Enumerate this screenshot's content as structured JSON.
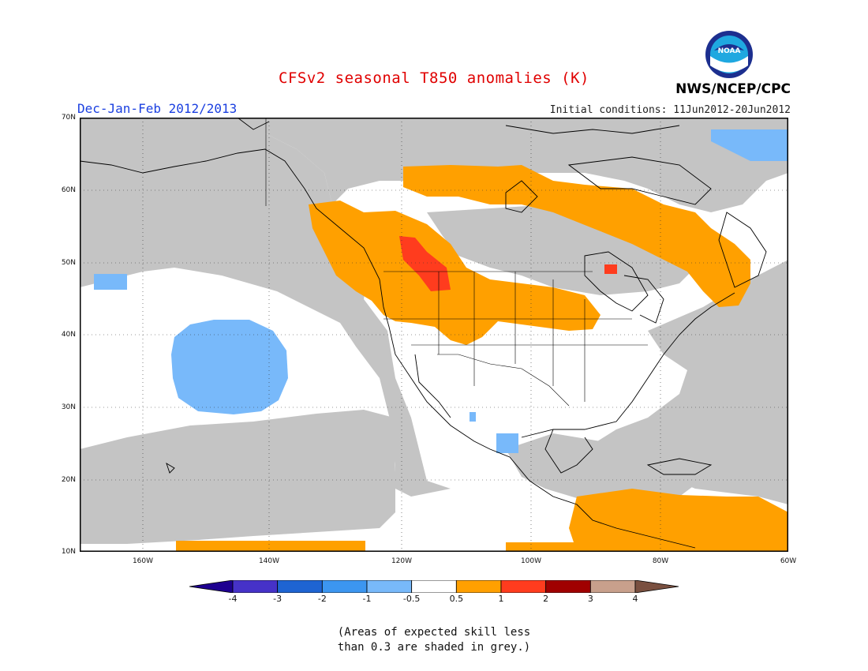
{
  "title": "CFSv2 seasonal T850 anomalies (K)",
  "season": "Dec-Jan-Feb 2012/2013",
  "initial_conditions": "Initial conditions: 11Jun2012-20Jun2012",
  "organization": "NWS/NCEP/CPC",
  "logo_text": "NOAA",
  "lat_labels": [
    "70N",
    "60N",
    "50N",
    "40N",
    "30N",
    "20N",
    "10N"
  ],
  "lon_labels": [
    "160W",
    "140W",
    "120W",
    "100W",
    "80W",
    "60W"
  ],
  "colorbar": {
    "labels": [
      "-4",
      "-3",
      "-2",
      "-1",
      "-0.5",
      "0.5",
      "1",
      "2",
      "3",
      "4"
    ],
    "colors": [
      "#1e0090",
      "#4632c8",
      "#1e64d2",
      "#3c96f0",
      "#78b9fa",
      "#ffffff",
      "#ffa000",
      "#ff3c1e",
      "#a00000",
      "#c8a08c",
      "#7a5040"
    ]
  },
  "note_line1": "(Areas of expected skill less",
  "note_line2": "than 0.3 are shaded in grey.)",
  "map": {
    "extent": {
      "lon": [
        -172,
        -60
      ],
      "lat": [
        10,
        70
      ]
    },
    "colors": {
      "grey": "#c4c4c4",
      "blue": "#78b9fa",
      "orange": "#ffa000",
      "red": "#ff3c1e",
      "land_line": "#000000"
    }
  }
}
